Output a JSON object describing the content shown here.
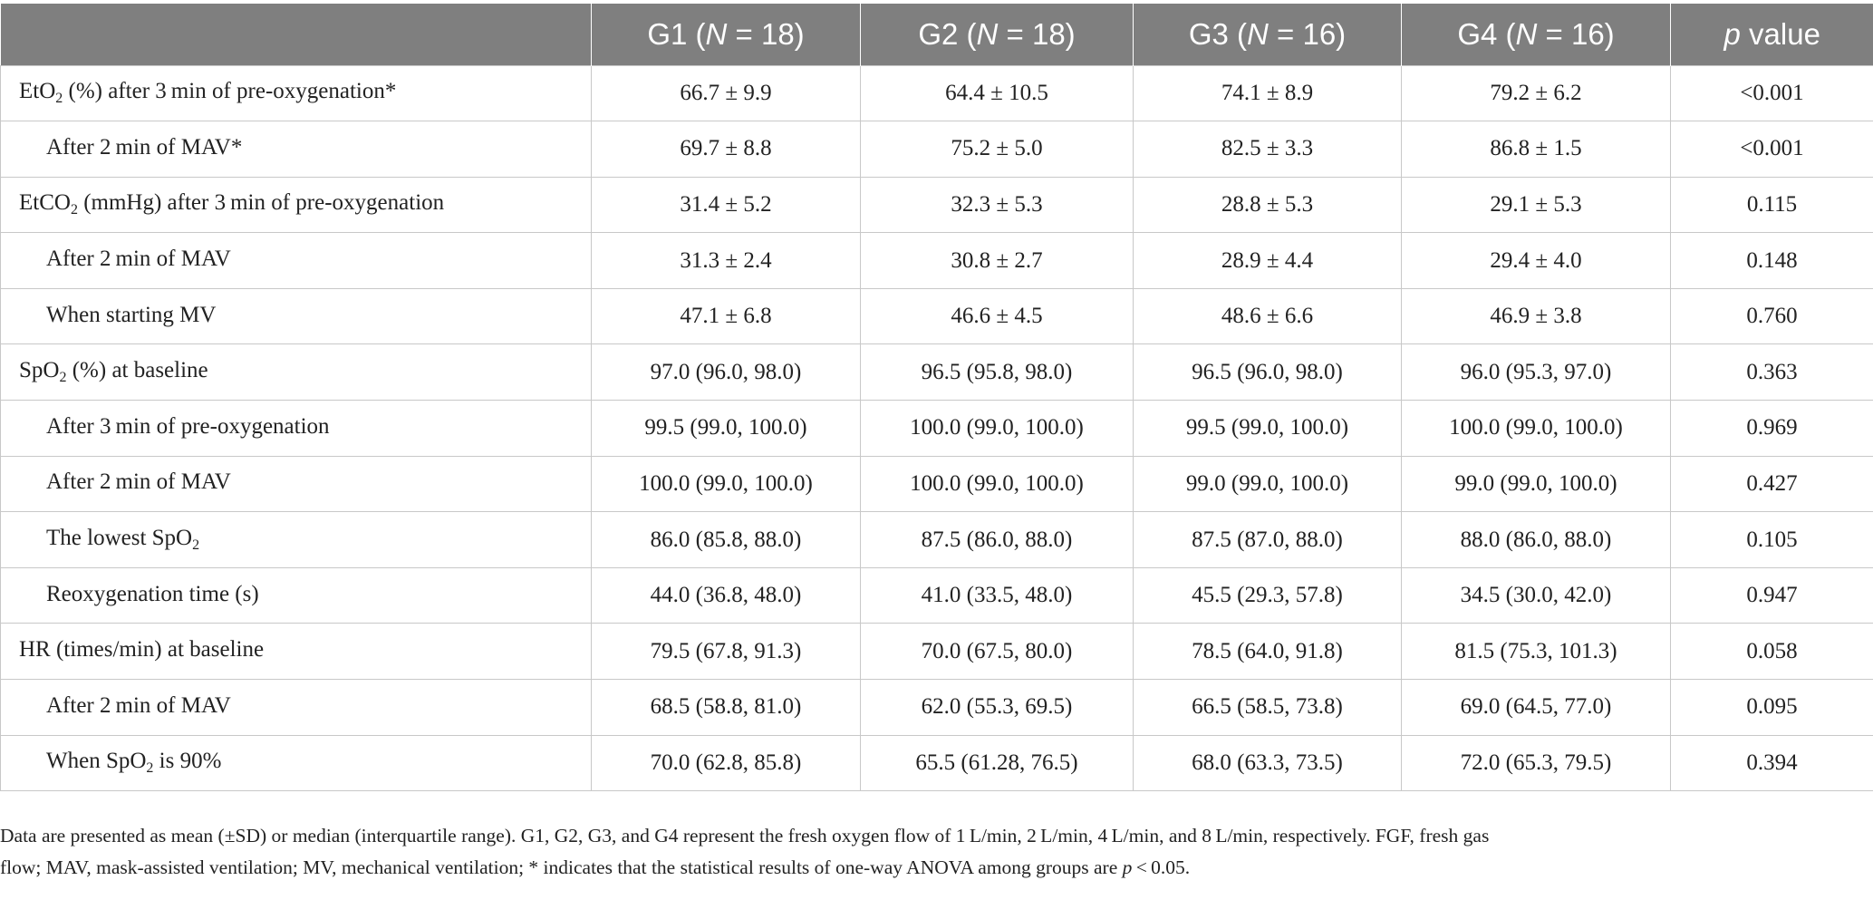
{
  "table": {
    "headers": [
      {
        "pre": "",
        "italic": "",
        "post": ""
      },
      {
        "pre": "G1 (",
        "italic": "N",
        "post": " = 18)"
      },
      {
        "pre": "G2 (",
        "italic": "N",
        "post": " = 18)"
      },
      {
        "pre": "G3 (",
        "italic": "N",
        "post": " = 16)"
      },
      {
        "pre": "G4 (",
        "italic": "N",
        "post": " = 16)"
      },
      {
        "pre": "",
        "italic": "p",
        "post": " value"
      }
    ],
    "rows": [
      {
        "label": {
          "pre": "EtO",
          "sub": "2",
          "post": " (%) after 3 min of pre-oxygenation*"
        },
        "indent": false,
        "values": [
          "66.7 ± 9.9",
          "64.4 ± 10.5",
          "74.1 ± 8.9",
          "79.2 ± 6.2",
          "<0.001"
        ]
      },
      {
        "label": {
          "pre": "After 2 min of MAV*",
          "sub": "",
          "post": ""
        },
        "indent": true,
        "values": [
          "69.7 ± 8.8",
          "75.2 ± 5.0",
          "82.5 ± 3.3",
          "86.8 ± 1.5",
          "<0.001"
        ]
      },
      {
        "label": {
          "pre": "EtCO",
          "sub": "2",
          "post": " (mmHg) after 3 min of pre-oxygenation"
        },
        "indent": false,
        "values": [
          "31.4 ± 5.2",
          "32.3 ± 5.3",
          "28.8 ± 5.3",
          "29.1 ± 5.3",
          "0.115"
        ]
      },
      {
        "label": {
          "pre": "After 2 min of MAV",
          "sub": "",
          "post": ""
        },
        "indent": true,
        "values": [
          "31.3 ± 2.4",
          "30.8 ± 2.7",
          "28.9 ± 4.4",
          "29.4 ± 4.0",
          "0.148"
        ]
      },
      {
        "label": {
          "pre": "When starting MV",
          "sub": "",
          "post": ""
        },
        "indent": true,
        "values": [
          "47.1 ± 6.8",
          "46.6 ± 4.5",
          "48.6 ± 6.6",
          "46.9 ± 3.8",
          "0.760"
        ]
      },
      {
        "label": {
          "pre": "SpO",
          "sub": "2",
          "post": " (%) at baseline"
        },
        "indent": false,
        "values": [
          "97.0 (96.0, 98.0)",
          "96.5 (95.8, 98.0)",
          "96.5 (96.0, 98.0)",
          "96.0 (95.3, 97.0)",
          "0.363"
        ]
      },
      {
        "label": {
          "pre": "After 3 min of pre-oxygenation",
          "sub": "",
          "post": ""
        },
        "indent": true,
        "values": [
          "99.5 (99.0, 100.0)",
          "100.0 (99.0, 100.0)",
          "99.5 (99.0, 100.0)",
          "100.0 (99.0, 100.0)",
          "0.969"
        ]
      },
      {
        "label": {
          "pre": "After 2 min of MAV",
          "sub": "",
          "post": ""
        },
        "indent": true,
        "values": [
          "100.0 (99.0, 100.0)",
          "100.0 (99.0, 100.0)",
          "99.0 (99.0, 100.0)",
          "99.0 (99.0, 100.0)",
          "0.427"
        ]
      },
      {
        "label": {
          "pre": "The lowest SpO",
          "sub": "2",
          "post": ""
        },
        "indent": true,
        "values": [
          "86.0 (85.8, 88.0)",
          "87.5 (86.0, 88.0)",
          "87.5 (87.0, 88.0)",
          "88.0 (86.0, 88.0)",
          "0.105"
        ]
      },
      {
        "label": {
          "pre": "Reoxygenation time (s)",
          "sub": "",
          "post": ""
        },
        "indent": true,
        "values": [
          "44.0 (36.8, 48.0)",
          "41.0 (33.5, 48.0)",
          "45.5 (29.3, 57.8)",
          "34.5 (30.0, 42.0)",
          "0.947"
        ]
      },
      {
        "label": {
          "pre": "HR (times/min) at baseline",
          "sub": "",
          "post": ""
        },
        "indent": false,
        "values": [
          "79.5 (67.8, 91.3)",
          "70.0 (67.5, 80.0)",
          "78.5 (64.0, 91.8)",
          "81.5 (75.3, 101.3)",
          "0.058"
        ]
      },
      {
        "label": {
          "pre": "After 2 min of MAV",
          "sub": "",
          "post": ""
        },
        "indent": true,
        "values": [
          "68.5 (58.8, 81.0)",
          "62.0 (55.3, 69.5)",
          "66.5 (58.5, 73.8)",
          "69.0 (64.5, 77.0)",
          "0.095"
        ]
      },
      {
        "label": {
          "pre": "When SpO",
          "sub": "2",
          "post": " is 90%"
        },
        "indent": true,
        "values": [
          "70.0 (62.8, 85.8)",
          "65.5 (61.28, 76.5)",
          "68.0 (63.3, 73.5)",
          "72.0 (65.3, 79.5)",
          "0.394"
        ]
      }
    ]
  },
  "footnote": {
    "line1": "Data are presented as mean (±SD) or median (interquartile range). G1, G2, G3, and G4 represent the fresh oxygen flow of 1 L/min, 2 L/min, 4 L/min, and 8 L/min, respectively. FGF, fresh gas",
    "line2_pre": "flow; MAV, mask-assisted ventilation; MV, mechanical ventilation; * indicates that the statistical results of one-way ANOVA among groups are ",
    "line2_italic": "p",
    "line2_post": " < 0.05."
  }
}
